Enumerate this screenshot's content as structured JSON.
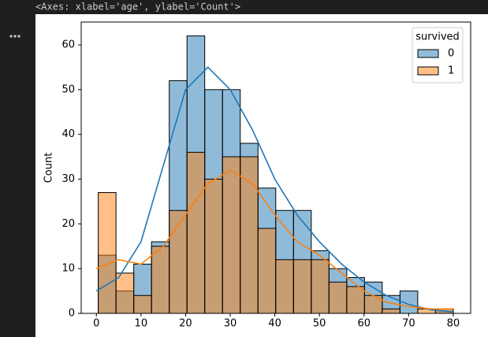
{
  "output_text": "<Axes: xlabel='age', ylabel='Count'>",
  "chart_data": {
    "type": "histogram",
    "y_label": "Count",
    "bins": [
      0.42,
      4.4,
      8.38,
      12.36,
      16.34,
      20.32,
      24.29,
      28.27,
      32.25,
      36.23,
      40.21,
      44.19,
      48.17,
      52.15,
      56.13,
      60.11,
      64.08,
      68.06,
      72.04,
      76.02,
      80.0
    ],
    "series": [
      {
        "name": "0",
        "color": "#1f77b4",
        "values": [
          13,
          5,
          11,
          16,
          52,
          62,
          50,
          50,
          38,
          28,
          23,
          23,
          14,
          10,
          8,
          7,
          4,
          5,
          0,
          1
        ],
        "kde": [
          5,
          8,
          16,
          33,
          50,
          55,
          50,
          41,
          30,
          22,
          16,
          11,
          7,
          4,
          2,
          0.8,
          0.3
        ]
      },
      {
        "name": "1",
        "color": "#ff7f0e",
        "values": [
          27,
          9,
          4,
          15,
          23,
          36,
          30,
          35,
          35,
          19,
          12,
          12,
          12,
          7,
          6,
          4,
          1,
          0,
          1,
          1
        ],
        "kde": [
          10,
          12,
          11,
          15,
          22,
          29,
          32,
          29,
          22,
          16,
          13,
          9,
          5,
          2.5,
          1.5,
          1,
          1
        ]
      }
    ],
    "kde_x": [
      0,
      5,
      10,
      15,
      20,
      25,
      30,
      35,
      40,
      45,
      50,
      55,
      60,
      65,
      70,
      75,
      80
    ],
    "legend_title": "survived",
    "legend_position": "upper right",
    "xlim": [
      -3.4,
      83.9
    ],
    "ylim": [
      0,
      65.1
    ],
    "xticks": [
      0,
      10,
      20,
      30,
      40,
      50,
      60,
      70,
      80
    ],
    "yticks": [
      0,
      10,
      20,
      30,
      40,
      50,
      60
    ]
  }
}
